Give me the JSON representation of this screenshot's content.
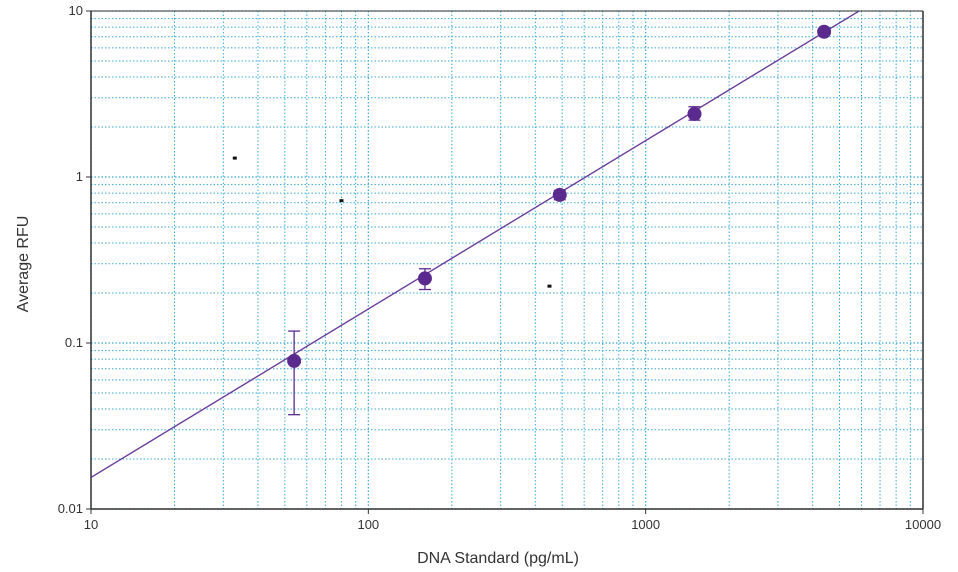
{
  "chart_data": {
    "type": "scatter",
    "title": "",
    "xlabel": "DNA Standard (pg/mL)",
    "ylabel": "Average RFU",
    "x_scale": "log",
    "y_scale": "log",
    "xlim": [
      10,
      10000
    ],
    "ylim": [
      0.01,
      10
    ],
    "x_ticks": [
      "10",
      "100",
      "1000",
      "10000"
    ],
    "y_ticks": [
      "0.01",
      "0.1",
      "1",
      "10"
    ],
    "grid": true,
    "legend": "none",
    "colors": {
      "series": "#5b2a8e",
      "fit_line": "#6a3d9a",
      "grid": "#3aa9d8",
      "axis": "#333333"
    },
    "series": [
      {
        "x": [
          54,
          160,
          490,
          1500,
          4400
        ],
        "y": [
          0.078,
          0.245,
          0.78,
          2.4,
          7.5
        ],
        "y_err_low": [
          0.037,
          0.21,
          0.73,
          2.2,
          7.3
        ],
        "y_err_high": [
          0.118,
          0.28,
          0.83,
          2.65,
          7.7
        ]
      }
    ],
    "fit_line": {
      "x": [
        10,
        6000
      ],
      "y": [
        0.0155,
        10.2
      ]
    },
    "stray_marks": [
      {
        "x": 33,
        "y": 1.3
      },
      {
        "x": 80,
        "y": 0.72
      },
      {
        "x": 450,
        "y": 0.22
      }
    ]
  }
}
